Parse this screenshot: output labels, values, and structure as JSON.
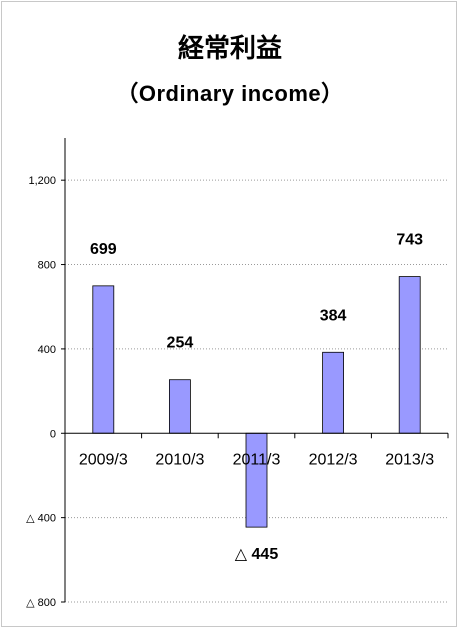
{
  "title": "経常利益",
  "subtitle": "（Ordinary income）",
  "chart_data": {
    "type": "bar",
    "categories": [
      "2009/3",
      "2010/3",
      "2011/3",
      "2012/3",
      "2013/3"
    ],
    "values": [
      699,
      254,
      -445,
      384,
      743
    ],
    "data_labels": [
      "699",
      "254",
      "△ 445",
      "384",
      "743"
    ],
    "ylim": [
      -800,
      1400
    ],
    "yticks": [
      1200,
      800,
      400,
      0,
      -400,
      -800
    ],
    "ytick_labels": [
      "1,200",
      "800",
      "400",
      "0",
      "△ 400",
      "△ 800"
    ],
    "grid": true,
    "bar_color": "#9999ff"
  }
}
